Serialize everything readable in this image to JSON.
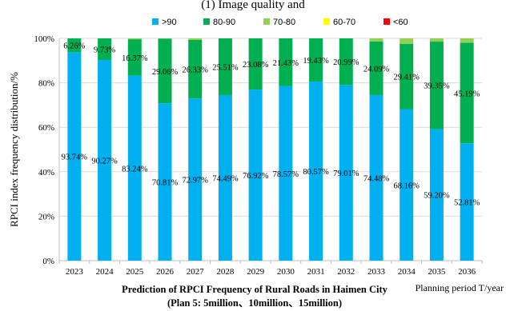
{
  "chart_data": {
    "type": "bar",
    "stacked": true,
    "top_title_fragment": "(1) Image quality and",
    "categories": [
      "2023",
      "2024",
      "2025",
      "2026",
      "2027",
      "2028",
      "2029",
      "2030",
      "2031",
      "2032",
      "2033",
      "2034",
      "2035",
      "2036"
    ],
    "series": [
      {
        "name": ">90",
        "color": "#00B0F0",
        "values": [
          93.74,
          90.27,
          83.24,
          70.81,
          72.97,
          74.49,
          76.92,
          78.57,
          80.57,
          79.01,
          74.48,
          68.16,
          59.2,
          52.81
        ],
        "labels": [
          "93.74%",
          "90.27%",
          "83.24%",
          "70.81%",
          "72.97%",
          "74.49%",
          "76.92%",
          "78.57%",
          "80.57%",
          "79.01%",
          "74.48%",
          "68.16%",
          "59.20%",
          "52.81%"
        ]
      },
      {
        "name": "80-90",
        "color": "#00B050",
        "values": [
          6.26,
          9.73,
          16.37,
          29.06,
          26.33,
          25.51,
          23.08,
          21.43,
          19.43,
          20.99,
          24.09,
          29.41,
          39.35,
          45.19
        ],
        "labels": [
          "6.26%",
          "9.73%",
          "16.37%",
          "29.06%",
          "26.33%",
          "25.51%",
          "23.08%",
          "21.43%",
          "19.43%",
          "20.99%",
          "24.09%",
          "29.41%",
          "39.35%",
          "45.19%"
        ]
      },
      {
        "name": "70-80",
        "color": "#92D050",
        "values": [
          0,
          0,
          0.39,
          0.13,
          0.7,
          0,
          0,
          0,
          0,
          0,
          1.43,
          2.43,
          1.45,
          2.0
        ]
      },
      {
        "name": "60-70",
        "color": "#FFFF00",
        "values": [
          0,
          0,
          0,
          0,
          0,
          0,
          0,
          0,
          0,
          0,
          0,
          0,
          0,
          0
        ]
      },
      {
        "name": "<60",
        "color": "#FF0000",
        "values": [
          0,
          0,
          0,
          0,
          0,
          0,
          0,
          0,
          0,
          0,
          0,
          0,
          0,
          0
        ]
      }
    ],
    "ylim": [
      0,
      100
    ],
    "yticks": [
      "0%",
      "20%",
      "40%",
      "60%",
      "80%",
      "100%"
    ],
    "ylabel": "RPCI index frequency distribution/%",
    "xlabel": "Planning period T/year",
    "caption_line1": "Prediction of RPCI Frequency of Rural Roads in Haimen City",
    "caption_line2": "(Plan 5: 5million、10million、15million)",
    "legend_position": "top"
  }
}
